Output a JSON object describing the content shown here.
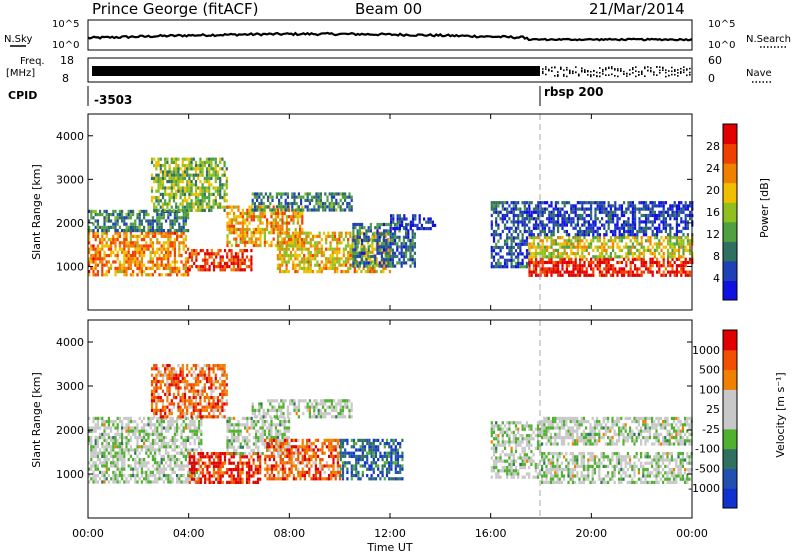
{
  "header": {
    "station": "Prince George (fitACF)",
    "beam": "Beam 00",
    "date": "21/Mar/2014"
  },
  "noise_panel": {
    "left_label": "N.Sky",
    "right_label": "N.Search",
    "ticks": [
      "10^5",
      "10^0"
    ]
  },
  "freq_panel": {
    "left_label_1": "Freq.",
    "left_label_2": "[MHz]",
    "left_ticks": [
      "18",
      "8"
    ],
    "right_label": "Nave",
    "right_ticks": [
      "60",
      "0"
    ]
  },
  "cpid": {
    "label": "CPID",
    "segments": [
      "-3503",
      "rbsp 200"
    ]
  },
  "x_axis": {
    "title": "Time UT",
    "ticks": [
      "00:00",
      "04:00",
      "08:00",
      "12:00",
      "16:00",
      "20:00",
      "00:00"
    ]
  },
  "chart_data": [
    {
      "type": "heatmap",
      "name": "power_panel",
      "xlabel": "Time UT",
      "ylabel": "Slant Range [km]",
      "xlim": [
        0,
        24
      ],
      "ylim": [
        0,
        4500
      ],
      "y_ticks": [
        "1000",
        "2000",
        "3000",
        "4000"
      ],
      "y_tick_values": [
        1000,
        2000,
        3000,
        4000
      ],
      "colorbar": {
        "label": "Power [dB]",
        "ticks": [
          "4",
          "8",
          "12",
          "16",
          "20",
          "24",
          "28"
        ],
        "tick_values": [
          4,
          8,
          12,
          16,
          20,
          24,
          28
        ],
        "range": [
          0,
          32
        ],
        "colors": [
          "#1010e0",
          "#2040b8",
          "#307060",
          "#4fa040",
          "#90c020",
          "#f0c000",
          "#f08000",
          "#f04000",
          "#e00000"
        ]
      },
      "regions": [
        {
          "t": [
            0.0,
            4.0
          ],
          "r": [
            800,
            1800
          ],
          "level": 0.72
        },
        {
          "t": [
            0.0,
            4.0
          ],
          "r": [
            1800,
            2300
          ],
          "level": 0.3
        },
        {
          "t": [
            2.5,
            5.5
          ],
          "r": [
            2300,
            3500
          ],
          "level": 0.45
        },
        {
          "t": [
            4.0,
            6.5
          ],
          "r": [
            900,
            1400
          ],
          "level": 0.88
        },
        {
          "t": [
            5.5,
            8.5
          ],
          "r": [
            1500,
            2400
          ],
          "level": 0.68
        },
        {
          "t": [
            6.5,
            10.5
          ],
          "r": [
            2300,
            2700
          ],
          "level": 0.3
        },
        {
          "t": [
            7.5,
            12.0
          ],
          "r": [
            900,
            1800
          ],
          "level": 0.62
        },
        {
          "t": [
            10.5,
            13.0
          ],
          "r": [
            1000,
            2000
          ],
          "level": 0.25
        },
        {
          "t": [
            12.0,
            13.8
          ],
          "r": [
            1900,
            2200
          ],
          "level": 0.15
        },
        {
          "t": [
            16.0,
            17.5
          ],
          "r": [
            1000,
            2500
          ],
          "level": 0.2
        },
        {
          "t": [
            17.5,
            24.0
          ],
          "r": [
            800,
            1200
          ],
          "level": 0.92
        },
        {
          "t": [
            17.5,
            24.0
          ],
          "r": [
            1200,
            1700
          ],
          "level": 0.55
        },
        {
          "t": [
            17.5,
            24.0
          ],
          "r": [
            1700,
            2500
          ],
          "level": 0.15
        }
      ]
    },
    {
      "type": "heatmap",
      "name": "velocity_panel",
      "xlabel": "Time UT",
      "ylabel": "Slant Range [km]",
      "xlim": [
        0,
        24
      ],
      "ylim": [
        0,
        4500
      ],
      "y_ticks": [
        "1000",
        "2000",
        "3000",
        "4000"
      ],
      "y_tick_values": [
        1000,
        2000,
        3000,
        4000
      ],
      "colorbar": {
        "label": "Velocity [m s⁻¹]",
        "ticks": [
          "1000",
          "500",
          "100",
          "25",
          "-25",
          "-100",
          "-500",
          "-1000"
        ],
        "colors": [
          "#1030d0",
          "#2050b0",
          "#307060",
          "#50b030",
          "#c8c8c8",
          "#c8c8c8",
          "#f08000",
          "#f05000",
          "#e00000"
        ]
      },
      "regions": [
        {
          "t": [
            0.0,
            4.5
          ],
          "r": [
            800,
            1800
          ],
          "level": 0.5
        },
        {
          "t": [
            0.0,
            4.5
          ],
          "r": [
            1800,
            2300
          ],
          "level": 0.5
        },
        {
          "t": [
            2.5,
            5.5
          ],
          "r": [
            2300,
            3500
          ],
          "level": 0.78
        },
        {
          "t": [
            4.0,
            6.8
          ],
          "r": [
            800,
            1500
          ],
          "level": 0.92
        },
        {
          "t": [
            5.5,
            8.0
          ],
          "r": [
            1500,
            2300
          ],
          "level": 0.5
        },
        {
          "t": [
            6.5,
            10.5
          ],
          "r": [
            2300,
            2700
          ],
          "level": 0.5
        },
        {
          "t": [
            7.0,
            10.0
          ],
          "r": [
            900,
            1800
          ],
          "level": 0.8
        },
        {
          "t": [
            10.0,
            12.5
          ],
          "r": [
            900,
            1800
          ],
          "level": 0.2
        },
        {
          "t": [
            16.0,
            18.0
          ],
          "r": [
            900,
            2200
          ],
          "level": 0.5
        },
        {
          "t": [
            18.0,
            24.0
          ],
          "r": [
            800,
            1500
          ],
          "level": 0.5
        },
        {
          "t": [
            18.0,
            24.0
          ],
          "r": [
            1700,
            2300
          ],
          "level": 0.5
        }
      ]
    }
  ]
}
